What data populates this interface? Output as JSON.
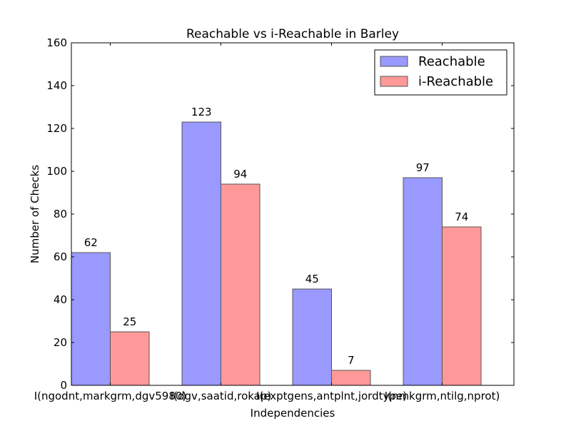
{
  "chart_data": {
    "type": "bar",
    "title": "Reachable vs i-Reachable in Barley",
    "xlabel": "Independencies",
    "ylabel": "Number of Checks",
    "categories": [
      "I(ngodnt,markgrm,dgv5980)",
      "I(dgv,saatid,rokap)",
      "I(exptgens,antplnt,jordtype)",
      "I(nmkgrm,ntilg,nprot)"
    ],
    "series": [
      {
        "name": "Reachable",
        "values": [
          62,
          123,
          45,
          97
        ],
        "color": "#9999ff"
      },
      {
        "name": "i-Reachable",
        "values": [
          25,
          94,
          7,
          74
        ],
        "color": "#ff9999"
      }
    ],
    "ylim": [
      0,
      160
    ],
    "yticks": [
      0,
      20,
      40,
      60,
      80,
      100,
      120,
      140,
      160
    ],
    "legend_position": "top-right",
    "grid": false,
    "bar_edge_color": "#555555",
    "data_labels": true
  }
}
